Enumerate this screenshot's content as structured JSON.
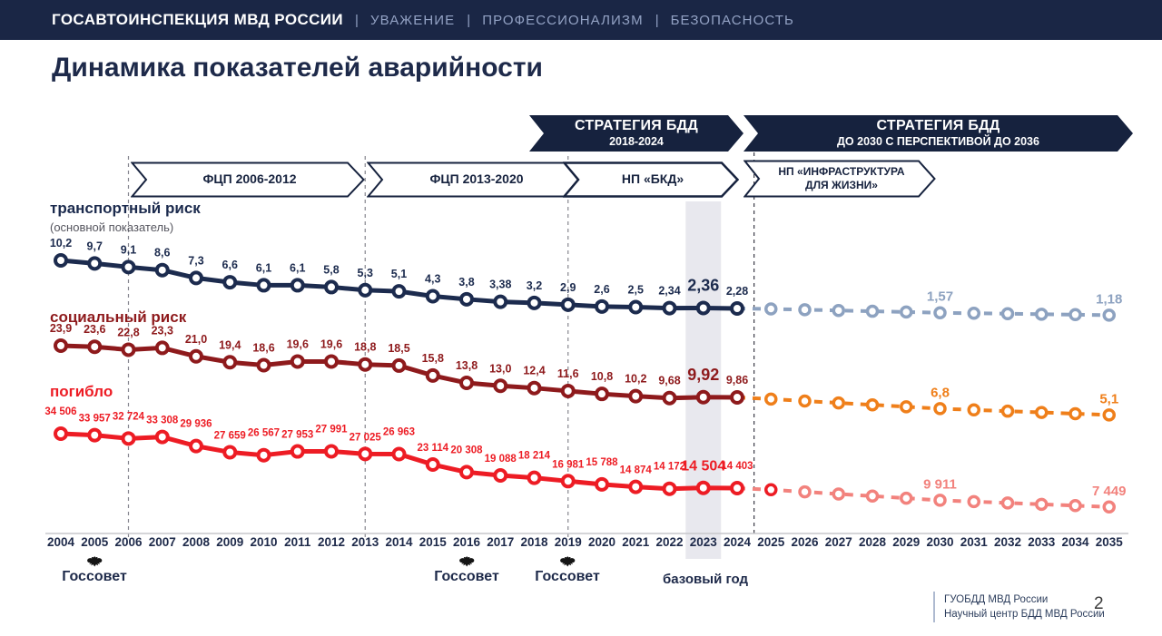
{
  "header": {
    "brand": "ГОСАВТОИНСПЕКЦИЯ МВД РОССИИ",
    "values": [
      "УВАЖЕНИЕ",
      "ПРОФЕССИОНАЛИЗМ",
      "БЕЗОПАСНОСТЬ"
    ]
  },
  "title": "Динамика показателей аварийности",
  "banners": {
    "strategy1_line1": "СТРАТЕГИЯ БДД",
    "strategy1_line2": "2018-2024",
    "strategy2_line1": "СТРАТЕГИЯ БДД",
    "strategy2_line2": "ДО 2030 С ПЕРСПЕКТИВОЙ ДО 2036",
    "fcp1": "ФЦП 2006-2012",
    "fcp2": "ФЦП 2013-2020",
    "bkd": "НП «БКД»",
    "infra_line1": "НП «ИНФРАСТРУКТУРА",
    "infra_line2": "ДЛЯ ЖИЗНИ»"
  },
  "chart_data": {
    "type": "line",
    "title": "Динамика показателей аварийности",
    "x_years_historical": [
      2004,
      2005,
      2006,
      2007,
      2008,
      2009,
      2010,
      2011,
      2012,
      2013,
      2014,
      2015,
      2016,
      2017,
      2018,
      2019,
      2020,
      2021,
      2022,
      2023,
      2024
    ],
    "x_years_projection": [
      2025,
      2026,
      2027,
      2028,
      2029,
      2030,
      2031,
      2032,
      2033,
      2034,
      2035
    ],
    "highlight_year": 2023,
    "highlight_caption": "базовый год",
    "gossovet_years": [
      2005,
      2016,
      2019
    ],
    "gossovet_label": "Госсовет",
    "series": [
      {
        "name": "транспортный риск",
        "note": "(основной показатель)",
        "color": "#1c2b4e",
        "values": [
          10.2,
          9.7,
          9.1,
          8.6,
          7.3,
          6.6,
          6.1,
          6.1,
          5.8,
          5.3,
          5.1,
          4.3,
          3.8,
          3.38,
          3.2,
          2.9,
          2.6,
          2.5,
          2.34,
          2.36,
          2.28
        ],
        "labels": [
          "10,2",
          "9,7",
          "9,1",
          "8,6",
          "7,3",
          "6,6",
          "6,1",
          "6,1",
          "5,8",
          "5,3",
          "5,1",
          "4,3",
          "3,8",
          "3,38",
          "3,2",
          "2,9",
          "2,6",
          "2,5",
          "2,34",
          "2,36",
          "2,28"
        ],
        "projection": {
          "color": "#8da2c0",
          "labeled_points": {
            "2030": 1.57,
            "2035": 1.18
          },
          "values_est": [
            2.2,
            2.07,
            1.95,
            1.82,
            1.7,
            1.57,
            1.49,
            1.41,
            1.33,
            1.26,
            1.18
          ],
          "labels": [
            null,
            null,
            null,
            null,
            null,
            "1,57",
            null,
            null,
            null,
            null,
            "1,18"
          ]
        }
      },
      {
        "name": "социальный риск",
        "note": "",
        "color": "#8e1a1c",
        "values": [
          23.9,
          23.6,
          22.8,
          23.3,
          21.0,
          19.4,
          18.6,
          19.6,
          19.6,
          18.8,
          18.5,
          15.8,
          13.8,
          13.0,
          12.4,
          11.6,
          10.8,
          10.2,
          9.68,
          9.92,
          9.86
        ],
        "labels": [
          "23,9",
          "23,6",
          "22,8",
          "23,3",
          "21,0",
          "19,4",
          "18,6",
          "19,6",
          "19,6",
          "18,8",
          "18,5",
          "15,8",
          "13,8",
          "13,0",
          "12,4",
          "11,6",
          "10,8",
          "10,2",
          "9,68",
          "9,92",
          "9,86"
        ],
        "projection": {
          "color": "#ef7f1a",
          "labeled_points": {
            "2030": 6.8,
            "2035": 5.1
          },
          "values_est": [
            9.4,
            8.88,
            8.36,
            7.84,
            7.32,
            6.8,
            6.46,
            6.12,
            5.78,
            5.44,
            5.1
          ],
          "labels": [
            null,
            null,
            null,
            null,
            null,
            "6,8",
            null,
            null,
            null,
            null,
            "5,1"
          ]
        }
      },
      {
        "name": "погибло",
        "note": "",
        "color": "#ed1c24",
        "values": [
          34506,
          33957,
          32724,
          33308,
          29936,
          27659,
          26567,
          27953,
          27991,
          27025,
          26963,
          23114,
          20308,
          19088,
          18214,
          16981,
          15788,
          14874,
          14172,
          14504,
          14403
        ],
        "labels": [
          "34 506",
          "33 957",
          "32 724",
          "33 308",
          "29 936",
          "27 659",
          "26 567",
          "27 953",
          "27 991",
          "27 025",
          "26 963",
          "23 114",
          "20 308",
          "19 088",
          "18 214",
          "16 981",
          "15 788",
          "14 874",
          "14 172",
          "14 504",
          "14 403"
        ],
        "projection": {
          "color": "#f2827d",
          "labeled_points": {
            "2030": 9911,
            "2035": 7449
          },
          "values_est": [
            13800,
            13022,
            12244,
            11467,
            10689,
            9911,
            9419,
            8926,
            8434,
            7941,
            7449
          ],
          "labels": [
            null,
            null,
            null,
            null,
            null,
            "9 911",
            null,
            null,
            null,
            null,
            "7 449"
          ]
        }
      }
    ]
  },
  "footer": {
    "org_line1": "ГУОБДД МВД России",
    "org_line2": "Научный центр БДД МВД России",
    "page": "2"
  }
}
